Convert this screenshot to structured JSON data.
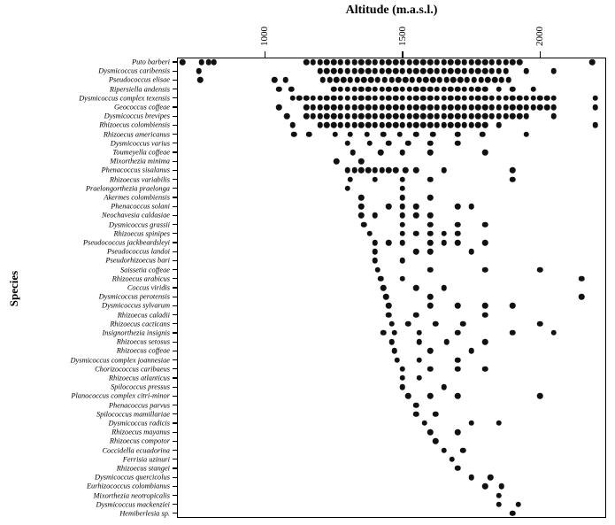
{
  "header": {
    "title": "Altitude (m.a.s.l.)"
  },
  "yaxis": {
    "label": "Species"
  },
  "chart_data": {
    "type": "scatter",
    "title": "Altitude (m.a.s.l.)",
    "xlabel": "Altitude (m.a.s.l.)",
    "ylabel": "Species",
    "xlim": [
      680,
      2240
    ],
    "x_ticks": [
      1000,
      1500,
      2000
    ],
    "grid": false,
    "legend": "none",
    "dot_color": "#111111",
    "series": [
      {
        "name": "Puto barberi",
        "values": [
          700,
          770,
          795,
          815,
          1150,
          1175,
          1200,
          1225,
          1250,
          1275,
          1300,
          1325,
          1350,
          1375,
          1400,
          1425,
          1450,
          1475,
          1500,
          1525,
          1550,
          1575,
          1600,
          1625,
          1650,
          1675,
          1700,
          1725,
          1750,
          1775,
          1800,
          1825,
          1850,
          1875,
          1900,
          1925,
          2190
        ]
      },
      {
        "name": "Dysmicoccus caribensis",
        "values": [
          760,
          1200,
          1225,
          1250,
          1275,
          1300,
          1325,
          1350,
          1375,
          1400,
          1425,
          1450,
          1475,
          1500,
          1525,
          1550,
          1575,
          1600,
          1625,
          1650,
          1675,
          1700,
          1725,
          1750,
          1775,
          1800,
          1825,
          1850,
          1875,
          1950,
          2050
        ]
      },
      {
        "name": "Pseudococcus elisae",
        "values": [
          765,
          1035,
          1075,
          1210,
          1235,
          1260,
          1285,
          1310,
          1335,
          1360,
          1385,
          1410,
          1435,
          1460,
          1485,
          1510,
          1535,
          1560,
          1585,
          1610,
          1635,
          1660,
          1685,
          1710,
          1735,
          1760,
          1785,
          1810,
          1835,
          1860,
          1885
        ]
      },
      {
        "name": "Ripersiella andensis",
        "values": [
          1050,
          1095,
          1250,
          1275,
          1300,
          1325,
          1350,
          1375,
          1400,
          1425,
          1450,
          1475,
          1500,
          1525,
          1550,
          1575,
          1600,
          1625,
          1650,
          1675,
          1700,
          1725,
          1750,
          1775,
          1800,
          1850,
          1900,
          1975
        ]
      },
      {
        "name": "Dysmicoccus complex texensis",
        "values": [
          1100,
          1125,
          1150,
          1175,
          1200,
          1225,
          1250,
          1275,
          1300,
          1325,
          1350,
          1375,
          1400,
          1425,
          1450,
          1475,
          1500,
          1525,
          1550,
          1575,
          1600,
          1625,
          1650,
          1675,
          1700,
          1725,
          1750,
          1775,
          1800,
          1825,
          1850,
          1875,
          1900,
          1925,
          1950,
          1975,
          2000,
          2025,
          2050,
          2200
        ]
      },
      {
        "name": "Geococcus coffeae",
        "values": [
          1050,
          1150,
          1175,
          1200,
          1225,
          1250,
          1275,
          1300,
          1325,
          1350,
          1375,
          1400,
          1425,
          1450,
          1475,
          1500,
          1525,
          1550,
          1575,
          1600,
          1625,
          1650,
          1675,
          1700,
          1725,
          1750,
          1775,
          1800,
          1825,
          1850,
          1875,
          1900,
          1925,
          1950,
          1975,
          2000,
          2025,
          2050,
          2200
        ]
      },
      {
        "name": "Dysmicoccus brevipes",
        "values": [
          1080,
          1150,
          1175,
          1200,
          1225,
          1250,
          1275,
          1300,
          1325,
          1350,
          1375,
          1400,
          1425,
          1450,
          1475,
          1500,
          1525,
          1550,
          1575,
          1600,
          1625,
          1650,
          1675,
          1700,
          1725,
          1750,
          1775,
          1800,
          1825,
          1850,
          1875,
          1900,
          1925,
          1950,
          2050
        ]
      },
      {
        "name": "Rhizoecus colombiensis",
        "values": [
          1100,
          1200,
          1225,
          1250,
          1275,
          1300,
          1325,
          1350,
          1375,
          1400,
          1425,
          1450,
          1475,
          1500,
          1525,
          1550,
          1575,
          1600,
          1625,
          1650,
          1675,
          1700,
          1725,
          1750,
          1775,
          1800,
          1850,
          2200
        ]
      },
      {
        "name": "Rhizoecus americanus",
        "values": [
          1105,
          1160,
          1255,
          1310,
          1370,
          1430,
          1490,
          1550,
          1610,
          1700,
          1790,
          1950
        ]
      },
      {
        "name": "Dysmicoccus varius",
        "values": [
          1300,
          1380,
          1450,
          1520,
          1600,
          1700
        ]
      },
      {
        "name": "Toumeyella coffeae",
        "values": [
          1320,
          1420,
          1500,
          1600,
          1800
        ]
      },
      {
        "name": "Mixorthezia minima",
        "values": [
          1260,
          1350
        ]
      },
      {
        "name": "Phenacoccus sisalanus",
        "values": [
          1300,
          1325,
          1350,
          1375,
          1400,
          1425,
          1450,
          1475,
          1510,
          1550,
          1650,
          1900
        ]
      },
      {
        "name": "Rhizoecus variabilis",
        "values": [
          1310,
          1400,
          1500,
          1600,
          1900
        ]
      },
      {
        "name": "Praelongorthezia praelonga",
        "values": [
          1300,
          1500
        ]
      },
      {
        "name": "Akermes colombiensis",
        "values": [
          1350,
          1500,
          1600
        ]
      },
      {
        "name": "Phenacoccus solani",
        "values": [
          1350,
          1450,
          1500,
          1550,
          1700,
          1750
        ]
      },
      {
        "name": "Neochavesia caldasiae",
        "values": [
          1350,
          1400,
          1500,
          1550,
          1600
        ]
      },
      {
        "name": "Dysmicoccus grassii",
        "values": [
          1360,
          1500,
          1600,
          1700,
          1800
        ]
      },
      {
        "name": "Rhizoecus spinipes",
        "values": [
          1380,
          1500,
          1550,
          1600,
          1650,
          1700
        ]
      },
      {
        "name": "Pseudococcus jackbeardsleyi",
        "values": [
          1400,
          1450,
          1500,
          1600,
          1650,
          1700,
          1800
        ]
      },
      {
        "name": "Pseudococcus landoi",
        "values": [
          1400,
          1550,
          1600,
          1750
        ]
      },
      {
        "name": "Pseudorhizoecus bari",
        "values": [
          1400,
          1500
        ]
      },
      {
        "name": "Saissetia coffeae",
        "values": [
          1410,
          1600,
          1800,
          2000
        ]
      },
      {
        "name": "Rhizoecus arabicus",
        "values": [
          1420,
          1500,
          2150
        ]
      },
      {
        "name": "Coccus viridis",
        "values": [
          1430,
          1550,
          1650
        ]
      },
      {
        "name": "Dysmicoccus perotensis",
        "values": [
          1440,
          1600,
          2150
        ]
      },
      {
        "name": "Dysmicoccus sylvarum",
        "values": [
          1450,
          1600,
          1700,
          1800,
          1900
        ]
      },
      {
        "name": "Rhizoecus caladii",
        "values": [
          1450,
          1550,
          1800
        ]
      },
      {
        "name": "Rhizoecus cacticans",
        "values": [
          1460,
          1520,
          1620,
          1720,
          2000
        ]
      },
      {
        "name": "Insignorthezia insignis",
        "values": [
          1430,
          1470,
          1560,
          1700,
          1900,
          2050
        ]
      },
      {
        "name": "Rhizoecus setosus",
        "values": [
          1460,
          1560,
          1660,
          1800
        ]
      },
      {
        "name": "Rhizoecus coffeae",
        "values": [
          1470,
          1600,
          1750
        ]
      },
      {
        "name": "Dysmicoccus complex joannesiae",
        "values": [
          1480,
          1560,
          1700
        ]
      },
      {
        "name": "Chorizococcus caribaeus",
        "values": [
          1500,
          1600,
          1700,
          1800
        ]
      },
      {
        "name": "Rhizoecus atlanticus",
        "values": [
          1500,
          1560
        ]
      },
      {
        "name": "Spilococcus pressus",
        "values": [
          1500,
          1650
        ]
      },
      {
        "name": "Planococcus complex citri-minor",
        "values": [
          1520,
          1600,
          1700,
          2000
        ]
      },
      {
        "name": "Phenacoccus parvus",
        "values": [
          1550
        ]
      },
      {
        "name": "Spilococcus mamillariae",
        "values": [
          1550,
          1620
        ]
      },
      {
        "name": "Dysmicoccus radicis",
        "values": [
          1580,
          1750,
          1850
        ]
      },
      {
        "name": "Rhizoecus mayanus",
        "values": [
          1600,
          1700
        ]
      },
      {
        "name": "Rhizoecus compotor",
        "values": [
          1620
        ]
      },
      {
        "name": "Coccidella ecuadorina",
        "values": [
          1650,
          1720
        ]
      },
      {
        "name": "Ferrisia uzinuri",
        "values": [
          1680
        ]
      },
      {
        "name": "Rhizoecus stangei",
        "values": [
          1700
        ]
      },
      {
        "name": "Dysmicoccus quercicolus",
        "values": [
          1750,
          1820
        ]
      },
      {
        "name": "Eurhizococcus colombianus",
        "values": [
          1800,
          1860
        ]
      },
      {
        "name": "Mixorthezia neotropicalis",
        "values": [
          1850
        ]
      },
      {
        "name": "Dysmicoccus mackenziei",
        "values": [
          1850,
          1920
        ]
      },
      {
        "name": "Hemiberlesia sp.",
        "values": [
          1900
        ]
      }
    ]
  }
}
